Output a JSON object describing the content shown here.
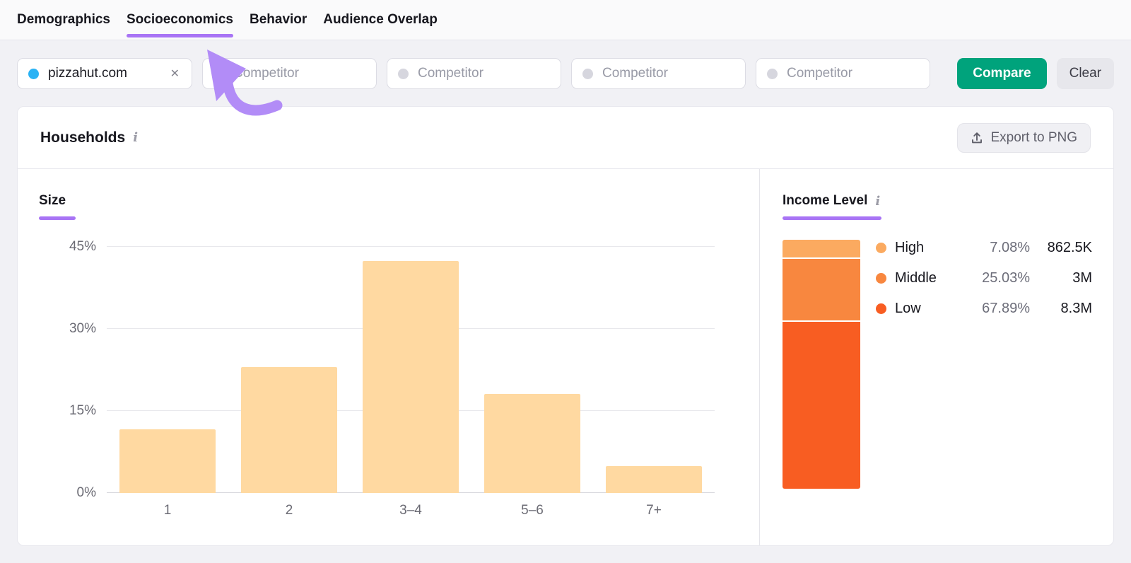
{
  "colors": {
    "purple": "#a874f5",
    "arrow_purple": "#b28cf7",
    "green": "#00a37c",
    "peach_bar": "#ffd9a1",
    "primary_dot_blue": "#2ab2f4",
    "ghost_dot_gray": "#d6d6de"
  },
  "nav": {
    "tabs": [
      {
        "label": "Demographics",
        "active": false
      },
      {
        "label": "Socioeconomics",
        "active": true
      },
      {
        "label": "Behavior",
        "active": false
      },
      {
        "label": "Audience Overlap",
        "active": false
      }
    ]
  },
  "filters": {
    "primary": {
      "domain": "pizzahut.com"
    },
    "competitor_placeholder": "Competitor",
    "competitor_slots": 4,
    "compare_label": "Compare",
    "clear_label": "Clear"
  },
  "icons": {
    "close_glyph": "✕",
    "info_glyph": "i"
  },
  "panel": {
    "title": "Households",
    "export_label": "Export to PNG"
  },
  "annotation": {
    "type": "curved-arrow",
    "points_to": "Socioeconomics tab"
  },
  "chart_data": [
    {
      "type": "bar",
      "title": "Size",
      "categories": [
        "1",
        "2",
        "3–4",
        "5–6",
        "7+"
      ],
      "values": [
        11.6,
        23.0,
        42.4,
        18.1,
        4.9
      ],
      "unit": "%",
      "yticks": [
        0,
        15,
        30,
        45
      ],
      "ylim": [
        0,
        45
      ],
      "grid": true,
      "legend_position": "none",
      "bar_color": "#ffd9a1"
    },
    {
      "type": "stacked-bar",
      "title": "Income Level",
      "segments": [
        {
          "label": "High",
          "percent": 7.08,
          "value": "862.5K",
          "color": "#fbaa60"
        },
        {
          "label": "Middle",
          "percent": 25.03,
          "value": "3M",
          "color": "#f8873f"
        },
        {
          "label": "Low",
          "percent": 67.89,
          "value": "8.3M",
          "color": "#f85d22"
        }
      ]
    }
  ]
}
